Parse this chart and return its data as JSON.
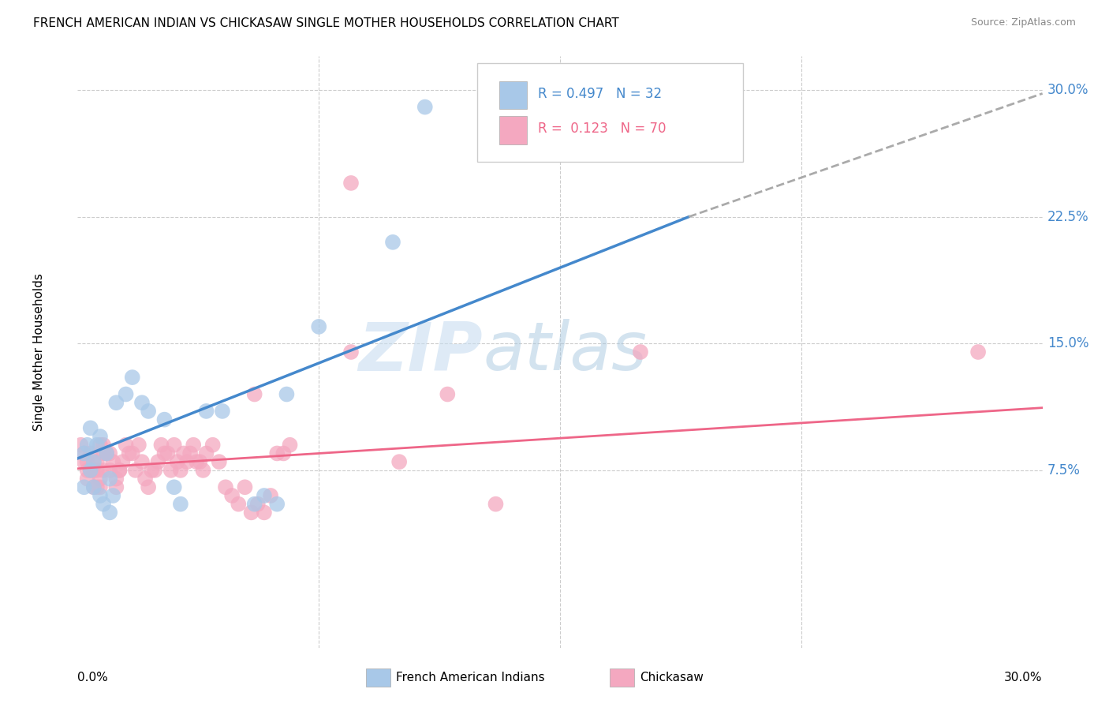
{
  "title": "FRENCH AMERICAN INDIAN VS CHICKASAW SINGLE MOTHER HOUSEHOLDS CORRELATION CHART",
  "source": "Source: ZipAtlas.com",
  "ylabel": "Single Mother Households",
  "xlim": [
    0.0,
    0.3
  ],
  "ylim": [
    -0.03,
    0.32
  ],
  "yticks": [
    0.075,
    0.15,
    0.225,
    0.3
  ],
  "ytick_labels": [
    "7.5%",
    "15.0%",
    "22.5%",
    "30.0%"
  ],
  "blue_color": "#a8c8e8",
  "pink_color": "#f4a8c0",
  "blue_line_color": "#4488cc",
  "pink_line_color": "#ee6688",
  "dashed_line_color": "#aaaaaa",
  "background_color": "#ffffff",
  "grid_color": "#cccccc",
  "blue_scatter": [
    [
      0.002,
      0.085
    ],
    [
      0.003,
      0.09
    ],
    [
      0.004,
      0.1
    ],
    [
      0.004,
      0.075
    ],
    [
      0.005,
      0.08
    ],
    [
      0.005,
      0.065
    ],
    [
      0.006,
      0.09
    ],
    [
      0.007,
      0.095
    ],
    [
      0.007,
      0.06
    ],
    [
      0.008,
      0.055
    ],
    [
      0.009,
      0.085
    ],
    [
      0.01,
      0.07
    ],
    [
      0.01,
      0.05
    ],
    [
      0.011,
      0.06
    ],
    [
      0.012,
      0.115
    ],
    [
      0.015,
      0.12
    ],
    [
      0.017,
      0.13
    ],
    [
      0.02,
      0.115
    ],
    [
      0.022,
      0.11
    ],
    [
      0.027,
      0.105
    ],
    [
      0.03,
      0.065
    ],
    [
      0.032,
      0.055
    ],
    [
      0.04,
      0.11
    ],
    [
      0.045,
      0.11
    ],
    [
      0.055,
      0.055
    ],
    [
      0.058,
      0.06
    ],
    [
      0.062,
      0.055
    ],
    [
      0.065,
      0.12
    ],
    [
      0.075,
      0.16
    ],
    [
      0.098,
      0.21
    ],
    [
      0.108,
      0.29
    ],
    [
      0.002,
      0.065
    ]
  ],
  "pink_scatter": [
    [
      0.001,
      0.09
    ],
    [
      0.002,
      0.085
    ],
    [
      0.002,
      0.08
    ],
    [
      0.003,
      0.075
    ],
    [
      0.003,
      0.08
    ],
    [
      0.003,
      0.07
    ],
    [
      0.004,
      0.075
    ],
    [
      0.004,
      0.085
    ],
    [
      0.005,
      0.075
    ],
    [
      0.005,
      0.065
    ],
    [
      0.005,
      0.08
    ],
    [
      0.006,
      0.065
    ],
    [
      0.006,
      0.08
    ],
    [
      0.006,
      0.075
    ],
    [
      0.007,
      0.09
    ],
    [
      0.007,
      0.07
    ],
    [
      0.007,
      0.065
    ],
    [
      0.008,
      0.085
    ],
    [
      0.008,
      0.09
    ],
    [
      0.008,
      0.075
    ],
    [
      0.009,
      0.085
    ],
    [
      0.009,
      0.085
    ],
    [
      0.01,
      0.075
    ],
    [
      0.01,
      0.085
    ],
    [
      0.011,
      0.08
    ],
    [
      0.012,
      0.07
    ],
    [
      0.012,
      0.065
    ],
    [
      0.013,
      0.075
    ],
    [
      0.013,
      0.075
    ],
    [
      0.014,
      0.08
    ],
    [
      0.015,
      0.09
    ],
    [
      0.016,
      0.085
    ],
    [
      0.017,
      0.085
    ],
    [
      0.018,
      0.075
    ],
    [
      0.019,
      0.09
    ],
    [
      0.02,
      0.08
    ],
    [
      0.021,
      0.07
    ],
    [
      0.022,
      0.065
    ],
    [
      0.023,
      0.075
    ],
    [
      0.024,
      0.075
    ],
    [
      0.025,
      0.08
    ],
    [
      0.026,
      0.09
    ],
    [
      0.027,
      0.085
    ],
    [
      0.028,
      0.085
    ],
    [
      0.029,
      0.075
    ],
    [
      0.03,
      0.09
    ],
    [
      0.031,
      0.08
    ],
    [
      0.032,
      0.075
    ],
    [
      0.033,
      0.085
    ],
    [
      0.034,
      0.08
    ],
    [
      0.035,
      0.085
    ],
    [
      0.036,
      0.09
    ],
    [
      0.037,
      0.08
    ],
    [
      0.038,
      0.08
    ],
    [
      0.039,
      0.075
    ],
    [
      0.04,
      0.085
    ],
    [
      0.042,
      0.09
    ],
    [
      0.044,
      0.08
    ],
    [
      0.046,
      0.065
    ],
    [
      0.048,
      0.06
    ],
    [
      0.05,
      0.055
    ],
    [
      0.052,
      0.065
    ],
    [
      0.054,
      0.05
    ],
    [
      0.056,
      0.055
    ],
    [
      0.058,
      0.05
    ],
    [
      0.06,
      0.06
    ],
    [
      0.062,
      0.085
    ],
    [
      0.064,
      0.085
    ],
    [
      0.066,
      0.09
    ],
    [
      0.085,
      0.145
    ],
    [
      0.1,
      0.08
    ],
    [
      0.115,
      0.12
    ],
    [
      0.13,
      0.055
    ],
    [
      0.175,
      0.145
    ],
    [
      0.085,
      0.245
    ],
    [
      0.28,
      0.145
    ],
    [
      0.055,
      0.12
    ]
  ],
  "blue_line_x": [
    0.0,
    0.19
  ],
  "blue_line_y_start": 0.082,
  "blue_line_y_end": 0.225,
  "dashed_line_x": [
    0.19,
    0.3
  ],
  "dashed_line_y_start": 0.225,
  "dashed_line_y_end": 0.298,
  "pink_line_x": [
    0.0,
    0.3
  ],
  "pink_line_y_start": 0.076,
  "pink_line_y_end": 0.112
}
